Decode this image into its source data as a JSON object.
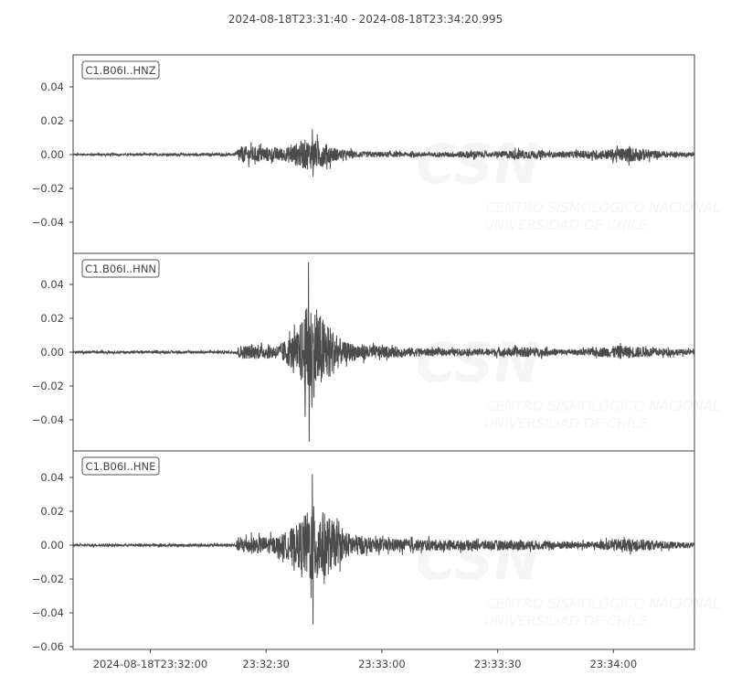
{
  "chart_data": {
    "type": "line",
    "title": "2024-08-18T23:31:40  -  2024-08-18T23:34:20.995",
    "x_range": [
      "2024-08-18T23:31:40",
      "2024-08-18T23:34:20.995"
    ],
    "x_ticks": [
      {
        "time": "23:32:00",
        "label": "2024-08-18T23:32:00"
      },
      {
        "time": "23:32:30",
        "label": "23:32:30"
      },
      {
        "time": "23:33:00",
        "label": "23:33:00"
      },
      {
        "time": "23:33:30",
        "label": "23:33:30"
      },
      {
        "time": "23:34:00",
        "label": "23:34:00"
      }
    ],
    "line_color": "#4b4b4b",
    "grid": false,
    "watermark": {
      "logo": "CSN",
      "line1": "CENTRO SISMOLÓGICO NACIONAL",
      "line2": "UNIVERSIDAD DE CHILE"
    },
    "series": [
      {
        "name": "C1.B06I..HNZ",
        "ylim": [
          -0.0584,
          0.0589
        ],
        "y_ticks": [
          0.04,
          0.02,
          0.0,
          -0.02,
          -0.04
        ],
        "y_tick_labels": [
          "0.04",
          "0.02",
          "0.00",
          "−0.02",
          "−0.04"
        ],
        "max": 0.015,
        "min": -0.013,
        "peak_time": "23:32:42",
        "envelope": [
          [
            "23:31:40",
            0.0006
          ],
          [
            "23:32:22",
            0.0008
          ],
          [
            "23:32:23",
            0.005
          ],
          [
            "23:32:35",
            0.004
          ],
          [
            "23:32:40",
            0.009
          ],
          [
            "23:32:44",
            0.008
          ],
          [
            "23:32:49",
            0.003
          ],
          [
            "23:32:55",
            0.0018
          ],
          [
            "23:33:15",
            0.0012
          ],
          [
            "23:33:24",
            0.0025
          ],
          [
            "23:33:28",
            0.0012
          ],
          [
            "23:33:35",
            0.003
          ],
          [
            "23:33:45",
            0.0015
          ],
          [
            "23:33:58",
            0.003
          ],
          [
            "23:34:05",
            0.0045
          ],
          [
            "23:34:12",
            0.002
          ],
          [
            "23:34:20",
            0.0012
          ]
        ]
      },
      {
        "name": "C1.B06I..HNN",
        "ylim": [
          -0.0584,
          0.0584
        ],
        "y_ticks": [
          0.04,
          0.02,
          0.0,
          -0.02,
          -0.04
        ],
        "y_tick_labels": [
          "0.04",
          "0.02",
          "0.00",
          "−0.02",
          "−0.04"
        ],
        "max": 0.053,
        "min": -0.053,
        "peak_time": "23:32:41",
        "envelope": [
          [
            "23:31:40",
            0.0006
          ],
          [
            "23:32:22",
            0.0008
          ],
          [
            "23:32:23",
            0.004
          ],
          [
            "23:32:33",
            0.004
          ],
          [
            "23:32:38",
            0.012
          ],
          [
            "23:32:41",
            0.03
          ],
          [
            "23:32:45",
            0.02
          ],
          [
            "23:32:50",
            0.006
          ],
          [
            "23:33:00",
            0.0035
          ],
          [
            "23:33:15",
            0.002
          ],
          [
            "23:33:25",
            0.002
          ],
          [
            "23:33:37",
            0.003
          ],
          [
            "23:33:50",
            0.0015
          ],
          [
            "23:34:02",
            0.004
          ],
          [
            "23:34:08",
            0.003
          ],
          [
            "23:34:20",
            0.0015
          ]
        ]
      },
      {
        "name": "C1.B06I..HNE",
        "ylim": [
          -0.0616,
          0.0557
        ],
        "y_ticks": [
          0.04,
          0.02,
          0.0,
          -0.02,
          -0.04,
          -0.06
        ],
        "y_tick_labels": [
          "0.04",
          "0.02",
          "0.00",
          "−0.02",
          "−0.04",
          "−0.06"
        ],
        "max": 0.042,
        "min": -0.047,
        "peak_time": "23:32:42",
        "envelope": [
          [
            "23:31:40",
            0.0006
          ],
          [
            "23:32:22",
            0.0009
          ],
          [
            "23:32:23",
            0.005
          ],
          [
            "23:32:33",
            0.005
          ],
          [
            "23:32:38",
            0.012
          ],
          [
            "23:32:42",
            0.024
          ],
          [
            "23:32:46",
            0.018
          ],
          [
            "23:32:50",
            0.008
          ],
          [
            "23:32:58",
            0.004
          ],
          [
            "23:33:20",
            0.003
          ],
          [
            "23:33:35",
            0.003
          ],
          [
            "23:33:55",
            0.002
          ],
          [
            "23:34:02",
            0.004
          ],
          [
            "23:34:10",
            0.003
          ],
          [
            "23:34:20",
            0.0015
          ]
        ]
      }
    ]
  }
}
